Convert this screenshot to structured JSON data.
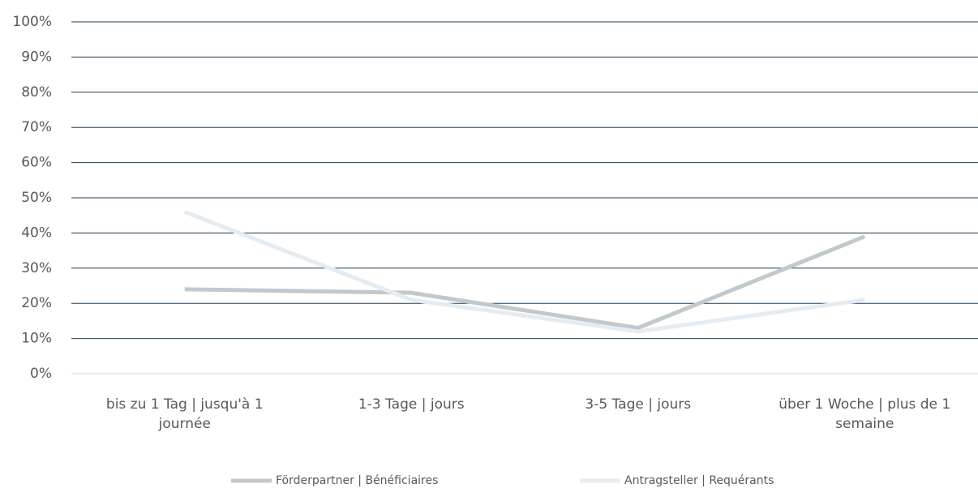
{
  "chart_data": {
    "type": "line",
    "categories": [
      "bis zu 1 Tag | jusqu'à 1 journée",
      "1-3 Tage | jours",
      "3-5 Tage | jours",
      "über 1 Woche | plus de 1 semaine"
    ],
    "series": [
      {
        "name": "Förderpartner | Bénéficiaires",
        "color": "#c1c9cd",
        "values": [
          24,
          23,
          13,
          39
        ]
      },
      {
        "name": "Antragsteller | Requérants",
        "color": "#e5ecf1",
        "values": [
          46,
          21,
          12,
          21
        ]
      }
    ],
    "ylim": [
      0,
      100
    ],
    "yticks": [
      {
        "value": 0,
        "label": "0%"
      },
      {
        "value": 10,
        "label": "10%"
      },
      {
        "value": 20,
        "label": "20%"
      },
      {
        "value": 30,
        "label": "30%"
      },
      {
        "value": 40,
        "label": "40%"
      },
      {
        "value": 50,
        "label": "50%"
      },
      {
        "value": 60,
        "label": "60%"
      },
      {
        "value": 70,
        "label": "70%"
      },
      {
        "value": 80,
        "label": "80%"
      },
      {
        "value": 90,
        "label": "90%"
      },
      {
        "value": 100,
        "label": "100%"
      }
    ],
    "grid": true
  }
}
